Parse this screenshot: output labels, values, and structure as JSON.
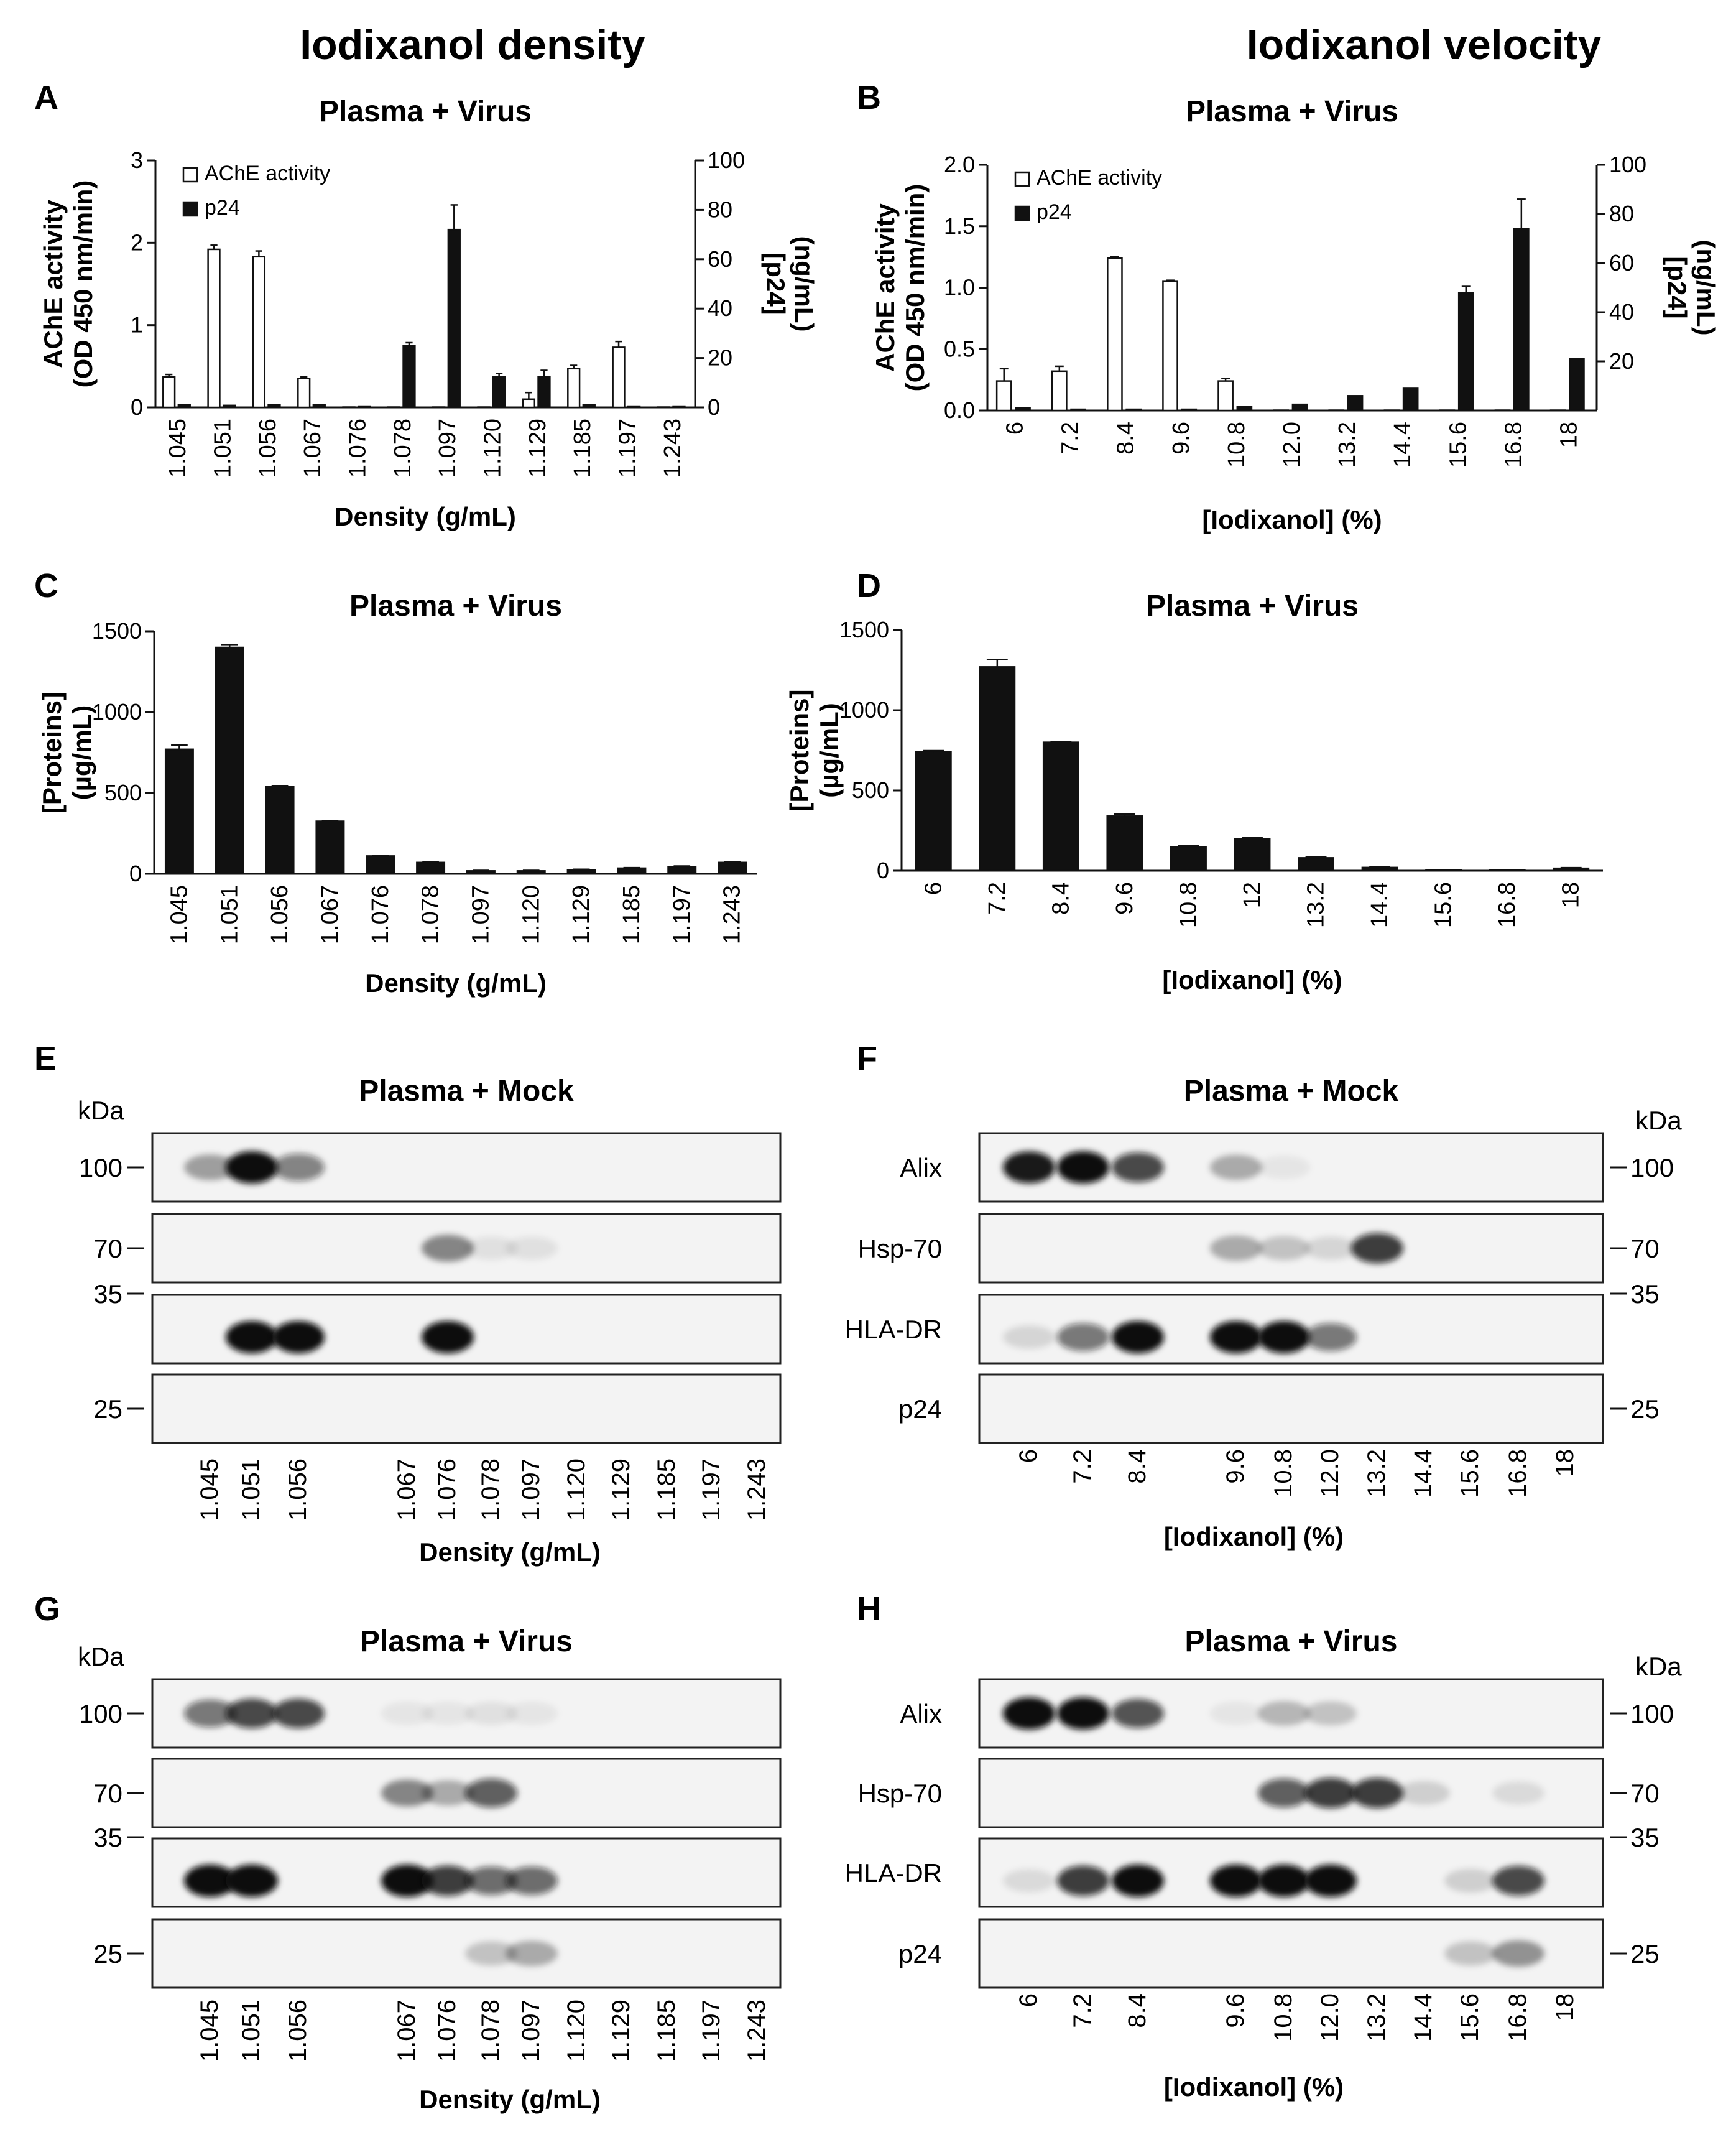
{
  "headers": {
    "left": "Iodixanol density",
    "right": "Iodixanol velocity"
  },
  "units": {
    "kda": "kDa"
  },
  "legend": {
    "white": "AChE activity",
    "black": "p24"
  },
  "chart_data": [
    {
      "id": "A",
      "panel": "A",
      "type": "bar",
      "title": "Plasma + Virus",
      "xlabel": "Density (g/mL)",
      "ylabel": [
        "AChE activity",
        "(OD 450 nm/min)"
      ],
      "y2label": [
        "[p24]",
        "(ng/mL)"
      ],
      "ylim": [
        0,
        3
      ],
      "yticks": [
        0,
        1,
        2,
        3
      ],
      "y2lim": [
        0,
        100
      ],
      "y2ticks": [
        0,
        20,
        40,
        60,
        80,
        100
      ],
      "categories": [
        "1.045",
        "1.051",
        "1.056",
        "1.067",
        "1.076",
        "1.078",
        "1.097",
        "1.120",
        "1.129",
        "1.185",
        "1.197",
        "1.243"
      ],
      "series": [
        {
          "name": "AChE activity",
          "axis": "left",
          "color": "#ffffff",
          "values": [
            0.37,
            1.92,
            1.83,
            0.35,
            0.0,
            0.0,
            0.0,
            0.0,
            0.1,
            0.47,
            0.73,
            0.0
          ],
          "errors": [
            0.03,
            0.05,
            0.07,
            0.02,
            0,
            0,
            0,
            0,
            0.08,
            0.04,
            0.07,
            0
          ]
        },
        {
          "name": "p24",
          "axis": "right",
          "color": "#111111",
          "values": [
            1.0,
            0.8,
            1.0,
            1.0,
            0.5,
            25.0,
            72.0,
            12.5,
            12.5,
            1.0,
            0.5,
            0.5
          ],
          "errors": [
            0,
            0,
            0,
            0,
            0,
            1.2,
            10.0,
            1.2,
            2.5,
            0,
            0,
            0
          ]
        }
      ]
    },
    {
      "id": "B",
      "panel": "B",
      "type": "bar",
      "title": "Plasma + Virus",
      "xlabel": "[Iodixanol] (%)",
      "ylabel": [
        "AChE activity",
        "(OD 450 nm/min)"
      ],
      "y2label": [
        "[p24]",
        "(ng/mL)"
      ],
      "ylim": [
        0,
        2
      ],
      "yticks": [
        "0.0",
        "0.5",
        "1.0",
        "1.5",
        "2.0"
      ],
      "y2lim": [
        0,
        100
      ],
      "y2ticks": [
        20,
        40,
        60,
        80,
        100
      ],
      "categories": [
        "6",
        "7.2",
        "8.4",
        "9.6",
        "10.8",
        "12.0",
        "13.2",
        "14.4",
        "15.6",
        "16.8",
        "18"
      ],
      "series": [
        {
          "name": "AChE activity",
          "axis": "left",
          "color": "#ffffff",
          "values": [
            0.24,
            0.32,
            1.24,
            1.05,
            0.24,
            0.0,
            0.0,
            0.0,
            0.0,
            0.0,
            0.0
          ],
          "errors": [
            0.1,
            0.04,
            0.01,
            0.01,
            0.02,
            0,
            0,
            0,
            0,
            0,
            0
          ]
        },
        {
          "name": "p24",
          "axis": "right",
          "color": "#111111",
          "values": [
            1.0,
            0.5,
            0.5,
            0.5,
            1.5,
            2.5,
            6.0,
            9.0,
            48.0,
            74.0,
            21.0
          ],
          "errors": [
            0,
            0,
            0,
            0,
            0,
            0,
            0,
            0,
            2.5,
            12.0,
            0
          ]
        }
      ]
    },
    {
      "id": "C",
      "panel": "C",
      "type": "bar",
      "title": "Plasma + Virus",
      "xlabel": "Density (g/mL)",
      "ylabel": [
        "[Proteins]",
        "(µg/mL)"
      ],
      "ylim": [
        0,
        1500
      ],
      "yticks": [
        0,
        500,
        1000,
        1500
      ],
      "categories": [
        "1.045",
        "1.051",
        "1.056",
        "1.067",
        "1.076",
        "1.078",
        "1.097",
        "1.120",
        "1.129",
        "1.185",
        "1.197",
        "1.243"
      ],
      "series": [
        {
          "name": "Proteins",
          "axis": "left",
          "color": "#111111",
          "values": [
            770,
            1400,
            540,
            325,
            110,
            70,
            18,
            18,
            25,
            35,
            45,
            70
          ],
          "errors": [
            25,
            18,
            5,
            5,
            3,
            5,
            3,
            3,
            3,
            3,
            3,
            3
          ]
        }
      ]
    },
    {
      "id": "D",
      "panel": "D",
      "type": "bar",
      "title": "Plasma + Virus",
      "xlabel": "[Iodixanol] (%)",
      "ylabel": [
        "[Proteins]",
        "(µg/mL)"
      ],
      "ylim": [
        0,
        1500
      ],
      "yticks": [
        0,
        500,
        1000,
        1500
      ],
      "categories": [
        "6",
        "7.2",
        "8.4",
        "9.6",
        "10.8",
        "12",
        "13.2",
        "14.4",
        "15.6",
        "16.8",
        "18"
      ],
      "series": [
        {
          "name": "Proteins",
          "axis": "left",
          "color": "#111111",
          "values": [
            740,
            1270,
            800,
            340,
            150,
            200,
            80,
            20,
            3,
            3,
            15
          ],
          "errors": [
            8,
            45,
            5,
            12,
            5,
            7,
            5,
            4,
            0,
            0,
            4
          ]
        }
      ]
    }
  ],
  "blots": [
    {
      "id": "E",
      "panel": "E",
      "title": "Plasma + Mock",
      "side": "left",
      "marker_header": "kDa",
      "markers": [
        "100",
        "70",
        "35",
        "25"
      ],
      "lanes": [
        "1.045",
        "1.051",
        "1.056",
        "1.067",
        "1.076",
        "1.078",
        "1.097",
        "1.120",
        "1.129",
        "1.185",
        "1.197",
        "1.243"
      ],
      "xlabel": "Density (g/mL)",
      "strips": [
        {
          "bands": [
            [
              0,
              0.35
            ],
            [
              1,
              1.0
            ],
            [
              2,
              0.5
            ]
          ]
        },
        {
          "bands": [
            [
              4,
              0.45
            ],
            [
              5,
              0.08
            ],
            [
              6,
              0.08
            ]
          ]
        },
        {
          "bands": [
            [
              1,
              1.0
            ],
            [
              2,
              1.0
            ],
            [
              4,
              1.0
            ]
          ]
        },
        {
          "bands": []
        }
      ]
    },
    {
      "id": "F",
      "panel": "F",
      "title": "Plasma + Mock",
      "side": "right",
      "marker_header": "kDa",
      "markers": [
        "100",
        "70",
        "35",
        "25"
      ],
      "row_labels": [
        "Alix",
        "Hsp-70",
        "HLA-DR",
        "p24"
      ],
      "lanes": [
        "6",
        "7.2",
        "8.4",
        "9.6",
        "10.8",
        "12.0",
        "13.2",
        "14.4",
        "15.6",
        "16.8",
        "18"
      ],
      "xlabel": "[Iodixanol] (%)",
      "strips": [
        {
          "bands": [
            [
              0,
              0.95
            ],
            [
              1,
              1.0
            ],
            [
              2,
              0.75
            ],
            [
              3,
              0.3
            ],
            [
              4,
              0.06
            ]
          ]
        },
        {
          "bands": [
            [
              3,
              0.3
            ],
            [
              4,
              0.2
            ],
            [
              5,
              0.12
            ],
            [
              6,
              0.8
            ]
          ]
        },
        {
          "bands": [
            [
              0,
              0.12
            ],
            [
              1,
              0.55
            ],
            [
              2,
              1.0
            ],
            [
              3,
              1.0
            ],
            [
              4,
              1.0
            ],
            [
              5,
              0.55
            ]
          ]
        },
        {
          "bands": []
        }
      ]
    },
    {
      "id": "G",
      "panel": "G",
      "title": "Plasma + Virus",
      "side": "left",
      "marker_header": "kDa",
      "markers": [
        "100",
        "70",
        "35",
        "25"
      ],
      "lanes": [
        "1.045",
        "1.051",
        "1.056",
        "1.067",
        "1.076",
        "1.078",
        "1.097",
        "1.120",
        "1.129",
        "1.185",
        "1.197",
        "1.243"
      ],
      "xlabel": "Density (g/mL)",
      "strips": [
        {
          "bands": [
            [
              0,
              0.55
            ],
            [
              1,
              0.75
            ],
            [
              2,
              0.75
            ],
            [
              3,
              0.06
            ],
            [
              4,
              0.06
            ],
            [
              5,
              0.08
            ],
            [
              6,
              0.06
            ]
          ]
        },
        {
          "bands": [
            [
              3,
              0.45
            ],
            [
              4,
              0.3
            ],
            [
              5,
              0.65
            ]
          ]
        },
        {
          "bands": [
            [
              0,
              1.0
            ],
            [
              1,
              1.0
            ],
            [
              3,
              1.0
            ],
            [
              4,
              0.8
            ],
            [
              5,
              0.6
            ],
            [
              6,
              0.6
            ]
          ]
        },
        {
          "bands": [
            [
              5,
              0.2
            ],
            [
              6,
              0.3
            ]
          ]
        }
      ]
    },
    {
      "id": "H",
      "panel": "H",
      "title": "Plasma + Virus",
      "side": "right",
      "marker_header": "kDa",
      "markers": [
        "100",
        "70",
        "35",
        "25"
      ],
      "row_labels": [
        "Alix",
        "Hsp-70",
        "HLA-DR",
        "p24"
      ],
      "lanes": [
        "6",
        "7.2",
        "8.4",
        "9.6",
        "10.8",
        "12.0",
        "13.2",
        "14.4",
        "15.6",
        "16.8",
        "18"
      ],
      "xlabel": "[Iodixanol] (%)",
      "strips": [
        {
          "bands": [
            [
              0,
              1.0
            ],
            [
              1,
              1.0
            ],
            [
              2,
              0.7
            ],
            [
              3,
              0.06
            ],
            [
              4,
              0.25
            ],
            [
              5,
              0.2
            ]
          ]
        },
        {
          "bands": [
            [
              4,
              0.65
            ],
            [
              5,
              0.8
            ],
            [
              6,
              0.8
            ],
            [
              7,
              0.15
            ],
            [
              9,
              0.1
            ]
          ]
        },
        {
          "bands": [
            [
              0,
              0.1
            ],
            [
              1,
              0.8
            ],
            [
              2,
              1.0
            ],
            [
              3,
              1.0
            ],
            [
              4,
              1.0
            ],
            [
              5,
              1.0
            ],
            [
              8,
              0.15
            ],
            [
              9,
              0.75
            ]
          ]
        },
        {
          "bands": [
            [
              8,
              0.2
            ],
            [
              9,
              0.4
            ]
          ]
        }
      ]
    }
  ]
}
